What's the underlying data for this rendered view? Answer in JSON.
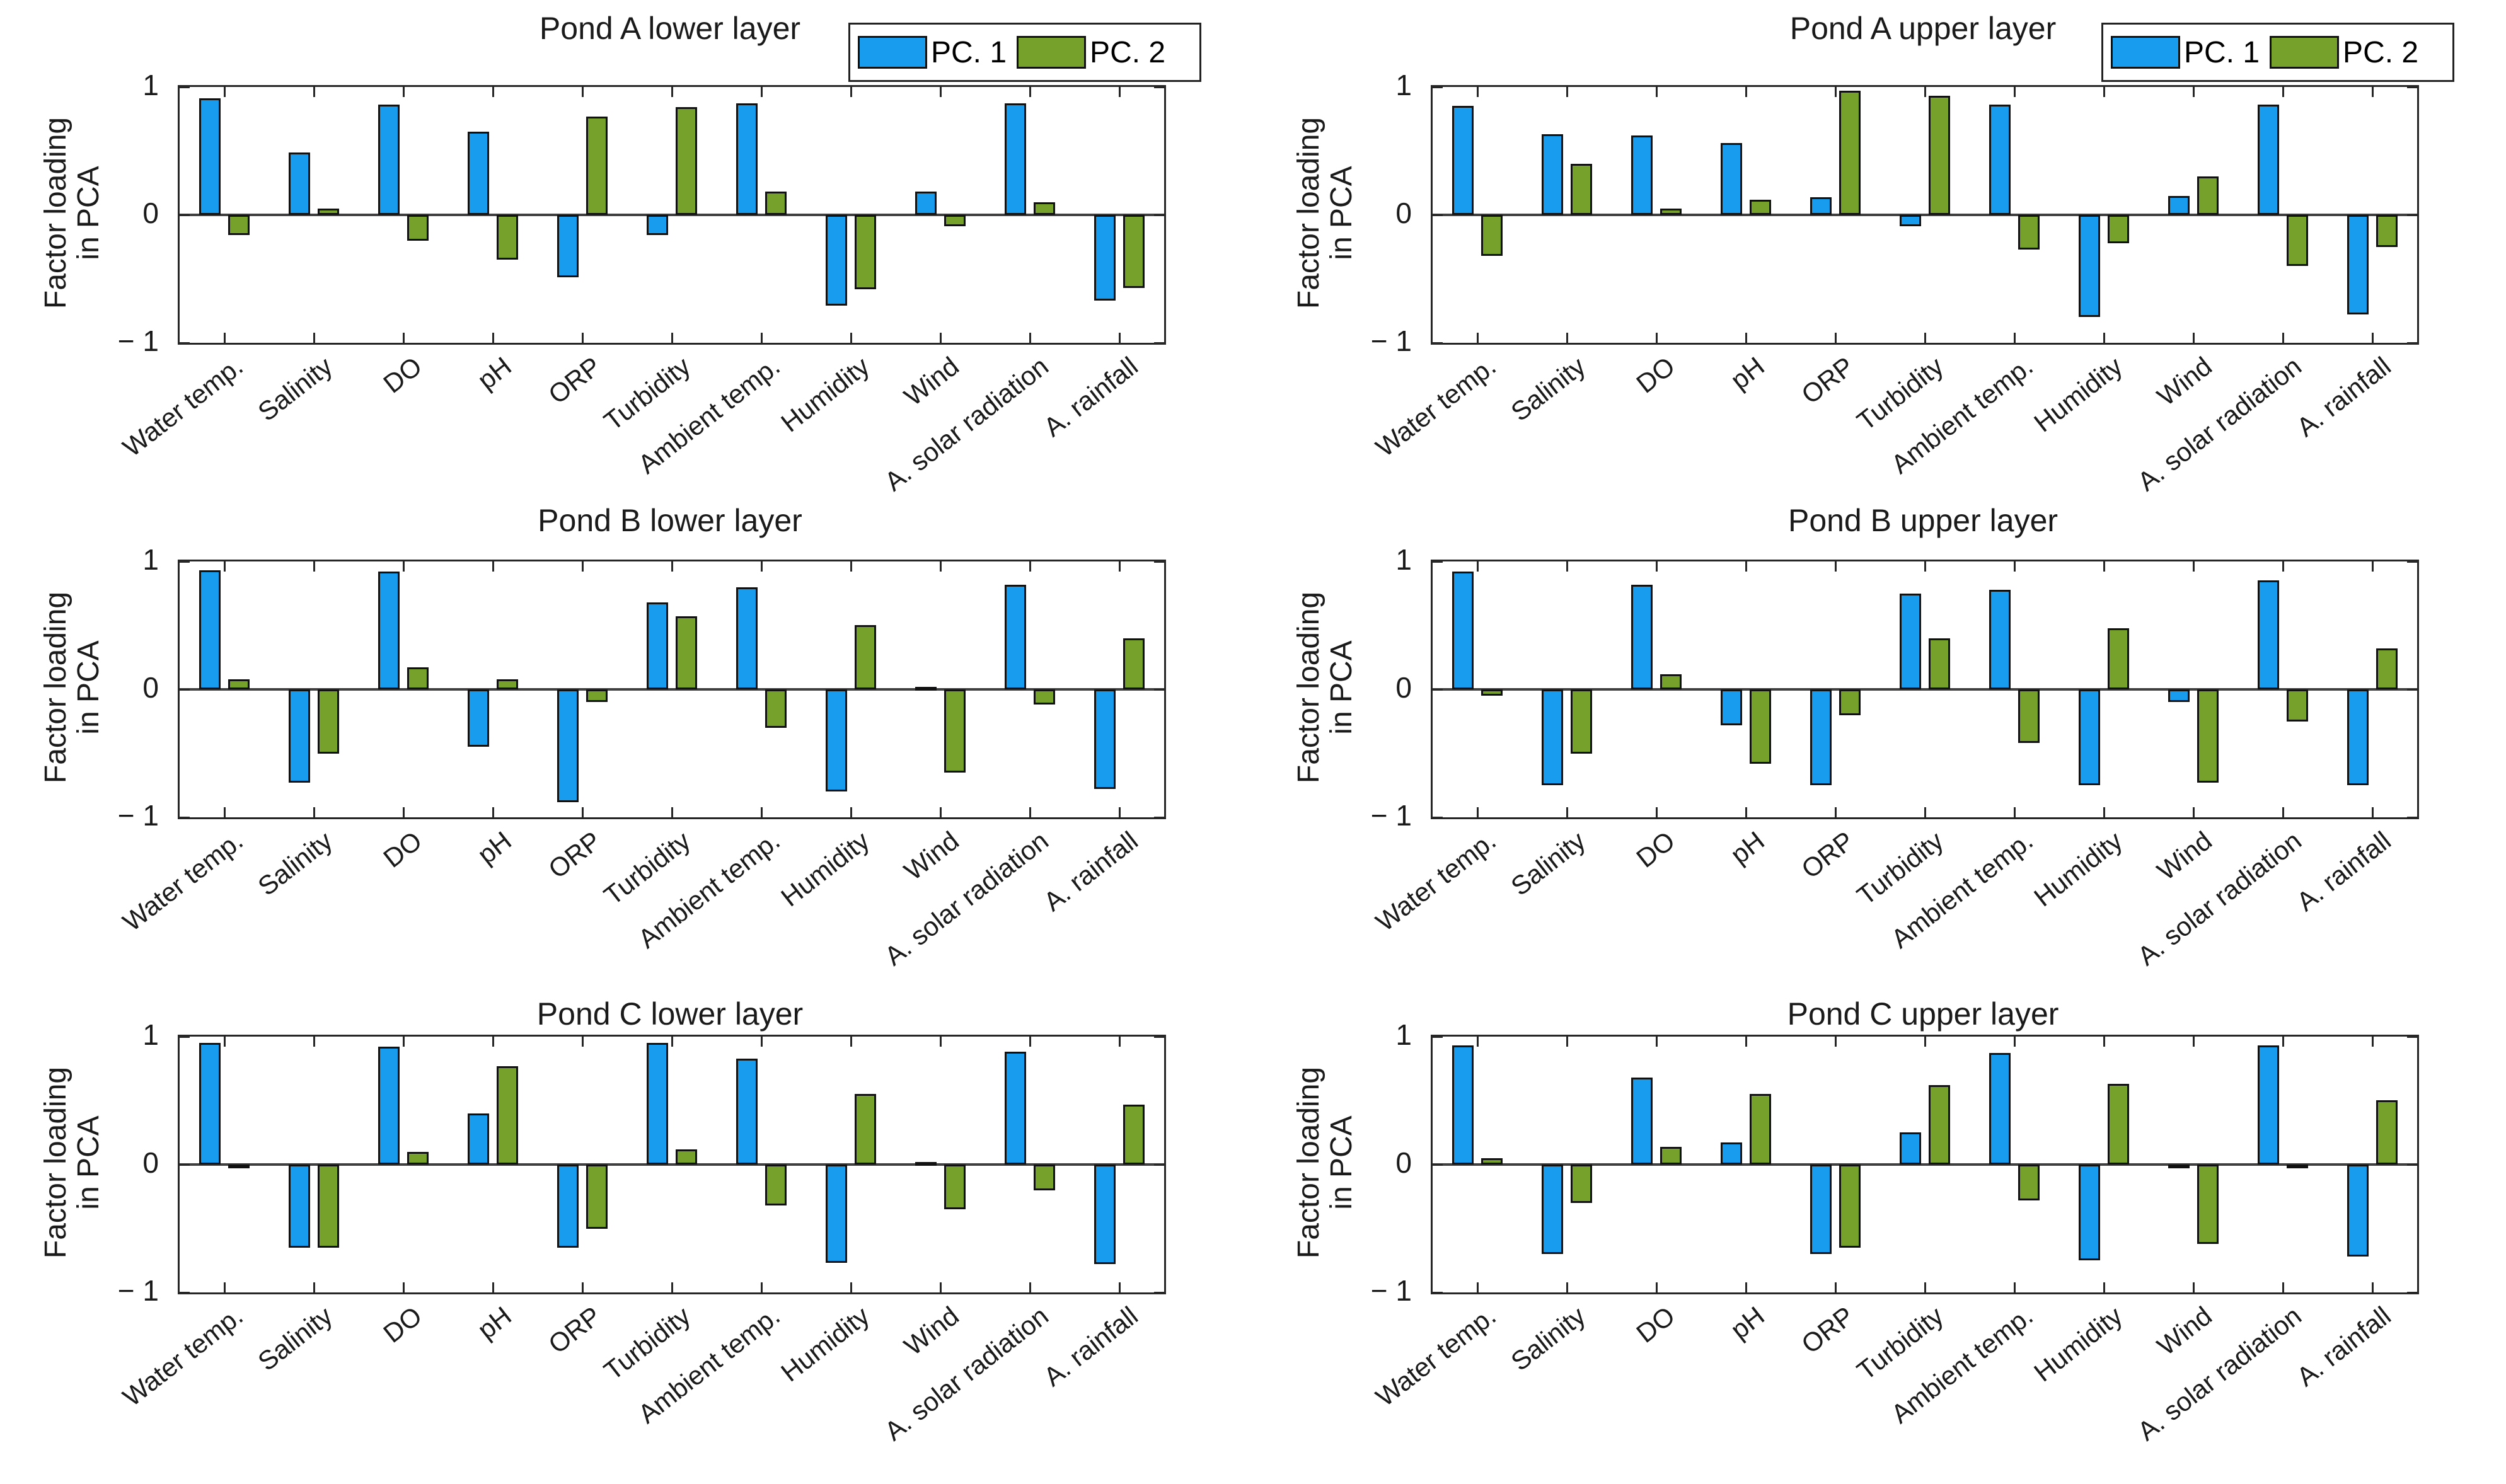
{
  "figure_name": "PCA factor loading bar charts for three ponds (lower and upper layers)",
  "colors": {
    "pc1": "#189DEE",
    "pc2": "#76A22B",
    "axis": "#262626",
    "zero_line": "#3F3F3F"
  },
  "chart_data": {
    "type": "bar",
    "categories": [
      "Water temp.",
      "Salinity",
      "DO",
      "pH",
      "ORP",
      "Turbidity",
      "Ambient temp.",
      "Humidity",
      "Wind",
      "A. solar radiation",
      "A. rainfall"
    ],
    "ylabel_line1": "Factor loading",
    "ylabel_line2": "in PCA",
    "ylim": [
      -1,
      1
    ],
    "ytick_values": [
      1,
      0,
      -1
    ],
    "ytick_labels": [
      "1",
      "0",
      "− 1"
    ],
    "grid": false,
    "legend": {
      "items": [
        {
          "label": "PC. 1",
          "color_key": "pc1"
        },
        {
          "label": "PC. 2",
          "color_key": "pc2"
        }
      ],
      "position": "top-right of first-row panels"
    },
    "panels": [
      {
        "title": "Pond A lower layer",
        "series": [
          {
            "name": "PC. 1",
            "values": [
              0.91,
              0.49,
              0.86,
              0.65,
              -0.49,
              -0.16,
              0.87,
              -0.71,
              0.18,
              0.87,
              -0.67
            ]
          },
          {
            "name": "PC. 2",
            "values": [
              -0.16,
              0.05,
              -0.2,
              -0.35,
              0.77,
              0.84,
              0.18,
              -0.58,
              -0.09,
              0.1,
              -0.57
            ]
          }
        ]
      },
      {
        "title": "Pond A upper layer",
        "series": [
          {
            "name": "PC. 1",
            "values": [
              0.85,
              0.63,
              0.62,
              0.56,
              0.14,
              -0.09,
              0.86,
              -0.8,
              0.15,
              0.86,
              -0.78
            ]
          },
          {
            "name": "PC. 2",
            "values": [
              -0.32,
              0.4,
              0.05,
              0.12,
              0.97,
              0.93,
              -0.27,
              -0.22,
              0.3,
              -0.4,
              -0.25
            ]
          }
        ]
      },
      {
        "title": "Pond B lower layer",
        "series": [
          {
            "name": "PC. 1",
            "values": [
              0.93,
              -0.73,
              0.92,
              -0.45,
              -0.88,
              0.68,
              0.8,
              -0.8,
              0.02,
              0.82,
              -0.78
            ]
          },
          {
            "name": "PC. 2",
            "values": [
              0.08,
              -0.5,
              0.17,
              0.08,
              -0.1,
              0.57,
              -0.3,
              0.5,
              -0.65,
              -0.12,
              0.4
            ]
          }
        ]
      },
      {
        "title": "Pond B upper layer",
        "series": [
          {
            "name": "PC. 1",
            "values": [
              0.92,
              -0.75,
              0.82,
              -0.28,
              -0.75,
              0.75,
              0.78,
              -0.75,
              -0.1,
              0.85,
              -0.75
            ]
          },
          {
            "name": "PC. 2",
            "values": [
              -0.05,
              -0.5,
              0.12,
              -0.58,
              -0.2,
              0.4,
              -0.42,
              0.48,
              -0.73,
              -0.25,
              0.32
            ]
          }
        ]
      },
      {
        "title": "Pond C lower layer",
        "series": [
          {
            "name": "PC. 1",
            "values": [
              0.95,
              -0.65,
              0.92,
              0.4,
              -0.65,
              0.95,
              0.83,
              -0.77,
              0.02,
              0.88,
              -0.78
            ]
          },
          {
            "name": "PC. 2",
            "values": [
              -0.03,
              -0.65,
              0.1,
              0.77,
              -0.5,
              0.12,
              -0.32,
              0.55,
              -0.35,
              -0.2,
              0.47
            ]
          }
        ]
      },
      {
        "title": "Pond C upper layer",
        "series": [
          {
            "name": "PC. 1",
            "values": [
              0.93,
              -0.7,
              0.68,
              0.17,
              -0.7,
              0.25,
              0.87,
              -0.75,
              -0.02,
              0.93,
              -0.72
            ]
          },
          {
            "name": "PC. 2",
            "values": [
              0.05,
              -0.3,
              0.14,
              0.55,
              -0.65,
              0.62,
              -0.28,
              0.63,
              -0.62,
              -0.03,
              0.5
            ]
          }
        ]
      }
    ]
  }
}
